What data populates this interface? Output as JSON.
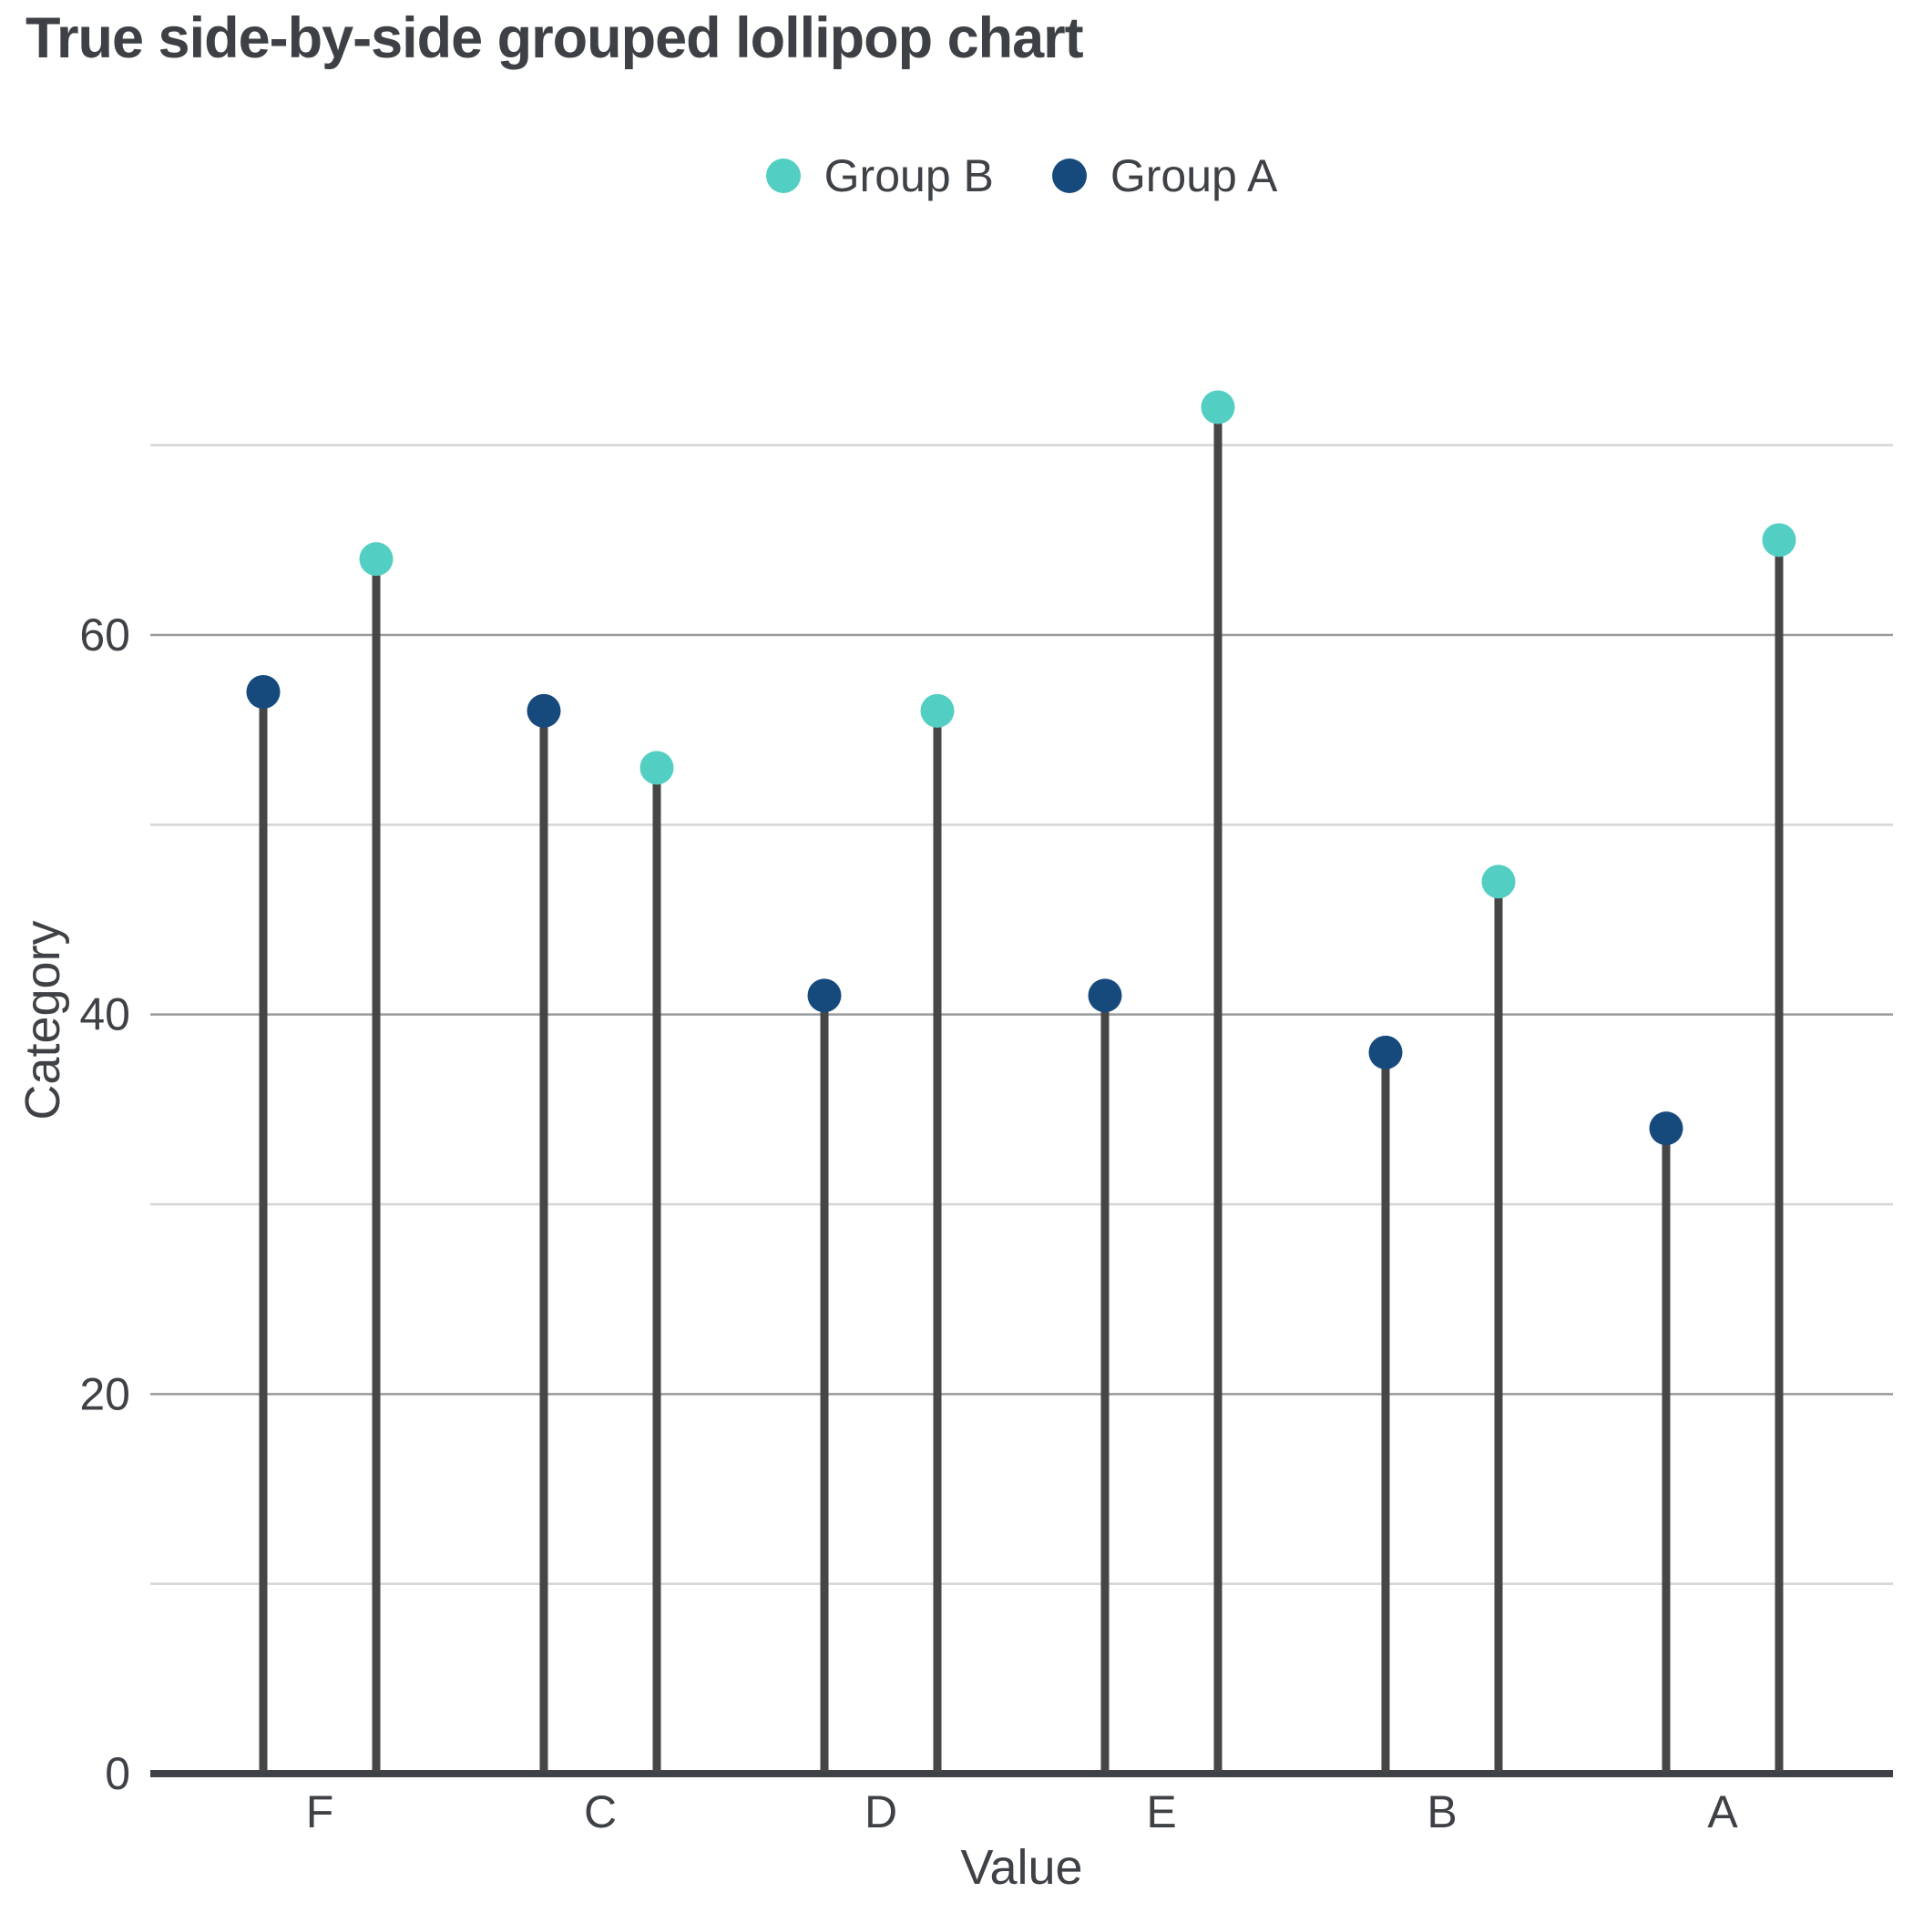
{
  "chart_data": {
    "type": "lollipop",
    "title": "True side-by-side grouped lollipop chart",
    "xlabel": "Value",
    "ylabel": "Category",
    "categories": [
      "F",
      "C",
      "D",
      "E",
      "B",
      "A"
    ],
    "series": [
      {
        "name": "Group A",
        "color": "#174a7c",
        "values": [
          57,
          56,
          41,
          41,
          38,
          34
        ]
      },
      {
        "name": "Group B",
        "color": "#53cec2",
        "values": [
          64,
          53,
          56,
          72,
          47,
          65
        ]
      }
    ],
    "legend": [
      {
        "label": "Group B",
        "color": "#53cec2"
      },
      {
        "label": "Group A",
        "color": "#174a7c"
      }
    ],
    "ylim": [
      0,
      73
    ],
    "yticks": [
      0,
      20,
      40,
      60
    ],
    "gridlines": {
      "major": [
        20,
        40,
        60
      ],
      "minor": [
        10,
        30,
        50,
        70
      ]
    },
    "legend_position": "top-center",
    "colors": {
      "stem": "#464646",
      "axis": "#3e4145",
      "grid_major": "#97999c",
      "grid_minor": "#d4d5d7",
      "text": "#3e4145",
      "title": "#3d4044"
    }
  }
}
